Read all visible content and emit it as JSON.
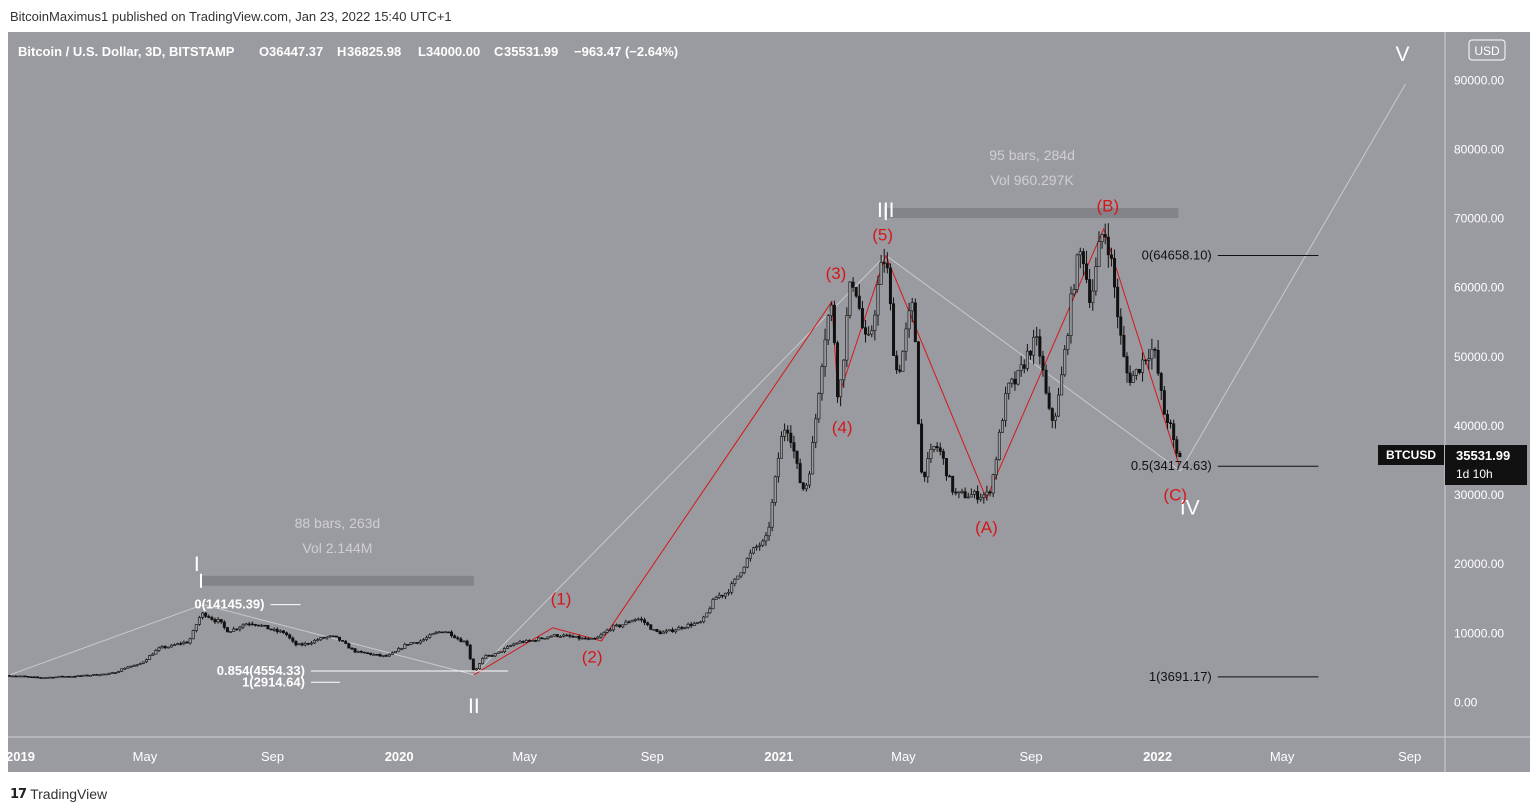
{
  "header": {
    "published": "BitcoinMaximus1 published on TradingView.com, Jan 23, 2022 15:40 UTC+1"
  },
  "footer": {
    "brand": "TradingView",
    "logo_icon": "tradingview-logo-icon"
  },
  "legend": {
    "symbol": "Bitcoin / U.S. Dollar, 3D, BITSTAMP",
    "o_label": "O",
    "o_value": "36447.37",
    "h_label": "H",
    "h_value": "36825.98",
    "l_label": "L",
    "l_value": "34000.00",
    "c_label": "C",
    "c_value": "35531.99",
    "change": "−963.47 (−2.64%)"
  },
  "currency_button": "USD",
  "price_tag": {
    "symbol": "BTCUSD",
    "price": "35531.99",
    "countdown": "1d 10h"
  },
  "colors": {
    "background": "#9a9ba1",
    "candle": "#111111",
    "wave_red": "#d5171a",
    "white": "#ffffff",
    "gray_line": "#c9c9cc"
  },
  "chart_data": {
    "type": "candlestick",
    "x_start": "2018-12-20",
    "x_end": "2022-10-05",
    "ylim": [
      -5000,
      97000
    ],
    "x_ticks": [
      {
        "label": "2019",
        "date": "2019-01-01",
        "bold": true
      },
      {
        "label": "May",
        "date": "2019-05-01"
      },
      {
        "label": "Sep",
        "date": "2019-09-01"
      },
      {
        "label": "2020",
        "date": "2020-01-01",
        "bold": true
      },
      {
        "label": "May",
        "date": "2020-05-01"
      },
      {
        "label": "Sep",
        "date": "2020-09-01"
      },
      {
        "label": "2021",
        "date": "2021-01-01",
        "bold": true
      },
      {
        "label": "May",
        "date": "2021-05-01"
      },
      {
        "label": "Sep",
        "date": "2021-09-01"
      },
      {
        "label": "2022",
        "date": "2022-01-01",
        "bold": true
      },
      {
        "label": "May",
        "date": "2022-05-01"
      },
      {
        "label": "Sep",
        "date": "2022-09-01"
      }
    ],
    "y_ticks": [
      {
        "label": "90000.00",
        "value": 90000
      },
      {
        "label": "80000.00",
        "value": 80000
      },
      {
        "label": "70000.00",
        "value": 70000
      },
      {
        "label": "60000.00",
        "value": 60000
      },
      {
        "label": "50000.00",
        "value": 50000
      },
      {
        "label": "40000.00",
        "value": 40000
      },
      {
        "label": "30000.00",
        "value": 30000
      },
      {
        "label": "20000.00",
        "value": 20000
      },
      {
        "label": "10000.00",
        "value": 10000
      },
      {
        "label": "0.00",
        "value": 0
      }
    ],
    "price_path": [
      [
        "2018-12-20",
        3900
      ],
      [
        "2019-01-20",
        3600
      ],
      [
        "2019-02-20",
        3800
      ],
      [
        "2019-03-25",
        4100
      ],
      [
        "2019-04-20",
        5300
      ],
      [
        "2019-05-20",
        8000
      ],
      [
        "2019-06-10",
        8700
      ],
      [
        "2019-06-26",
        12800
      ],
      [
        "2019-07-10",
        11800
      ],
      [
        "2019-07-20",
        10400
      ],
      [
        "2019-08-10",
        11500
      ],
      [
        "2019-09-10",
        10200
      ],
      [
        "2019-09-25",
        8300
      ],
      [
        "2019-10-27",
        9500
      ],
      [
        "2019-11-25",
        7200
      ],
      [
        "2019-12-18",
        6700
      ],
      [
        "2020-01-15",
        8700
      ],
      [
        "2020-02-13",
        10300
      ],
      [
        "2020-03-05",
        8800
      ],
      [
        "2020-03-13",
        4700
      ],
      [
        "2020-03-25",
        6700
      ],
      [
        "2020-04-30",
        8800
      ],
      [
        "2020-06-01",
        9700
      ],
      [
        "2020-07-05",
        9100
      ],
      [
        "2020-07-28",
        11000
      ],
      [
        "2020-08-17",
        12100
      ],
      [
        "2020-09-08",
        10100
      ],
      [
        "2020-10-15",
        11400
      ],
      [
        "2020-11-05",
        15500
      ],
      [
        "2020-12-17",
        23000
      ],
      [
        "2021-01-08",
        40000
      ],
      [
        "2021-01-25",
        31000
      ],
      [
        "2021-02-21",
        57000
      ],
      [
        "2021-02-27",
        45000
      ],
      [
        "2021-03-13",
        61000
      ],
      [
        "2021-03-27",
        52000
      ],
      [
        "2021-04-13",
        64000
      ],
      [
        "2021-04-25",
        48000
      ],
      [
        "2021-05-10",
        57000
      ],
      [
        "2021-05-19",
        33000
      ],
      [
        "2021-06-01",
        37000
      ],
      [
        "2021-06-22",
        30000
      ],
      [
        "2021-07-20",
        30000
      ],
      [
        "2021-08-13",
        46000
      ],
      [
        "2021-09-06",
        52000
      ],
      [
        "2021-09-21",
        41000
      ],
      [
        "2021-10-20",
        65000
      ],
      [
        "2021-10-28",
        59000
      ],
      [
        "2021-11-10",
        68000
      ],
      [
        "2021-12-05",
        47000
      ],
      [
        "2021-12-27",
        51000
      ],
      [
        "2022-01-10",
        41000
      ],
      [
        "2022-01-21",
        35500
      ]
    ],
    "annotations": [
      {
        "type": "wave",
        "text": "I",
        "color": "white",
        "date": "2019-06-20",
        "y": 19000,
        "bold": true
      },
      {
        "type": "wave",
        "text": "II",
        "color": "white",
        "date": "2020-03-13",
        "y": -1500
      },
      {
        "type": "wave",
        "text": "III",
        "color": "white",
        "date": "2021-04-14",
        "y": 70200
      },
      {
        "type": "wave",
        "text": "IV",
        "color": "white",
        "date": "2022-02-01",
        "y": 27200
      },
      {
        "type": "wave",
        "text": "V",
        "color": "white",
        "date": "2022-08-25",
        "y": 92800
      },
      {
        "type": "wave",
        "text": "(1)",
        "color": "red",
        "date": "2020-06-05",
        "y": 14200
      },
      {
        "type": "wave",
        "text": "(2)",
        "color": "red",
        "date": "2020-07-05",
        "y": 5800
      },
      {
        "type": "wave",
        "text": "(3)",
        "color": "red",
        "date": "2021-02-25",
        "y": 61300
      },
      {
        "type": "wave",
        "text": "(4)",
        "color": "red",
        "date": "2021-03-03",
        "y": 39000
      },
      {
        "type": "wave",
        "text": "(5)",
        "color": "red",
        "date": "2021-04-11",
        "y": 66800
      },
      {
        "type": "wave",
        "text": "(A)",
        "color": "red",
        "date": "2021-07-20",
        "y": 24500
      },
      {
        "type": "wave",
        "text": "(B)",
        "color": "red",
        "date": "2021-11-14",
        "y": 71000
      },
      {
        "type": "wave",
        "text": "(C)",
        "color": "red",
        "date": "2022-01-18",
        "y": 29200
      }
    ],
    "fib_levels": [
      {
        "label": "0(14145.39)",
        "value": 14145.39,
        "from": "2019-08-30",
        "to": "2019-09-28",
        "color": "white"
      },
      {
        "label": "0.854(4554.33)",
        "value": 4554.33,
        "from": "2019-10-08",
        "to": "2020-04-15",
        "color": "white"
      },
      {
        "label": "1(2914.64)",
        "value": 2914.64,
        "from": "2019-10-08",
        "to": "2019-11-05",
        "color": "white"
      },
      {
        "label": "0(64658.10)",
        "value": 64658.1,
        "from": "2022-02-28",
        "to": "2022-06-05",
        "color": "black"
      },
      {
        "label": "0.5(34174.63)",
        "value": 34174.63,
        "from": "2022-02-28",
        "to": "2022-06-05",
        "color": "black"
      },
      {
        "label": "1(3691.17)",
        "value": 3691.17,
        "from": "2022-02-28",
        "to": "2022-06-05",
        "color": "black"
      }
    ],
    "measure_boxes": [
      {
        "bars": "88 bars, 263d",
        "vol": "Vol 2.144M",
        "from": "2019-06-24",
        "to": "2020-03-13",
        "value": 17600
      },
      {
        "bars": "95 bars, 284d",
        "vol": "Vol 960.297K",
        "from": "2021-04-14",
        "to": "2022-01-21",
        "value": 70800
      }
    ]
  }
}
